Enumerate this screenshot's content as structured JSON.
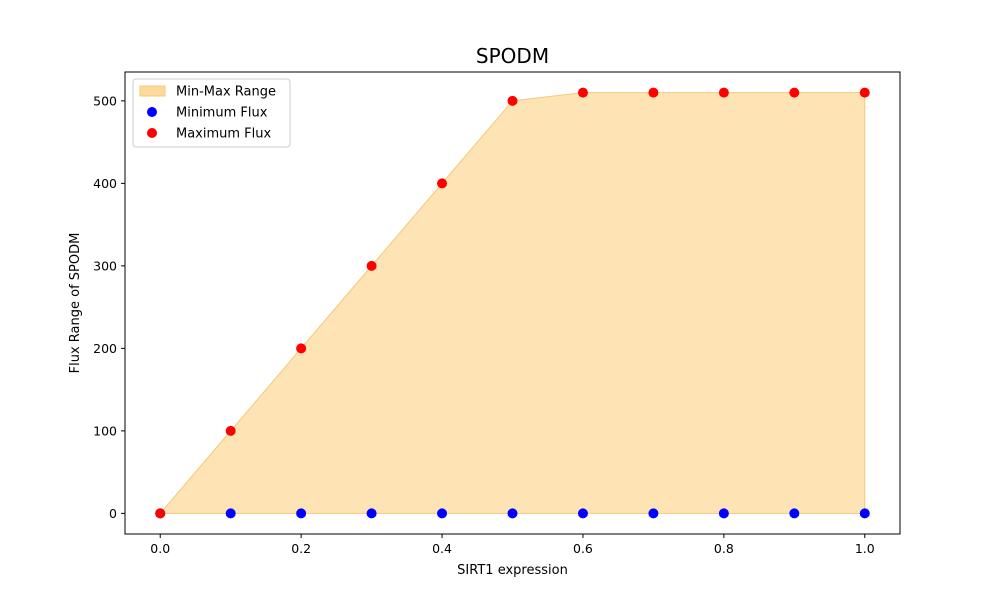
{
  "chart_data": {
    "type": "scatter",
    "title": "SPODM",
    "xlabel": "SIRT1 expression",
    "ylabel": "Flux Range of SPODM",
    "xlim": [
      -0.05,
      1.05
    ],
    "ylim": [
      -25,
      535
    ],
    "xticks": [
      0.0,
      0.2,
      0.4,
      0.6,
      0.8,
      1.0
    ],
    "xtick_labels": [
      "0.0",
      "0.2",
      "0.4",
      "0.6",
      "0.8",
      "1.0"
    ],
    "yticks": [
      0,
      100,
      200,
      300,
      400,
      500
    ],
    "ytick_labels": [
      "0",
      "100",
      "200",
      "300",
      "400",
      "500"
    ],
    "x": [
      0.0,
      0.1,
      0.2,
      0.3,
      0.4,
      0.5,
      0.6,
      0.7,
      0.8,
      0.9,
      1.0
    ],
    "series": [
      {
        "name": "Minimum Flux",
        "kind": "scatter",
        "color": "#0000ff",
        "values": [
          0,
          0,
          0,
          0,
          0,
          0,
          0,
          0,
          0,
          0,
          0
        ]
      },
      {
        "name": "Maximum Flux",
        "kind": "scatter",
        "color": "#ff0000",
        "values": [
          0,
          100,
          200,
          300,
          400,
          500,
          510,
          510,
          510,
          510,
          510
        ]
      }
    ],
    "fill": {
      "name": "Min-Max Range",
      "color": "#fdd99b",
      "edge": "#f5c97a"
    },
    "legend_position": "upper-left",
    "grid": false
  }
}
